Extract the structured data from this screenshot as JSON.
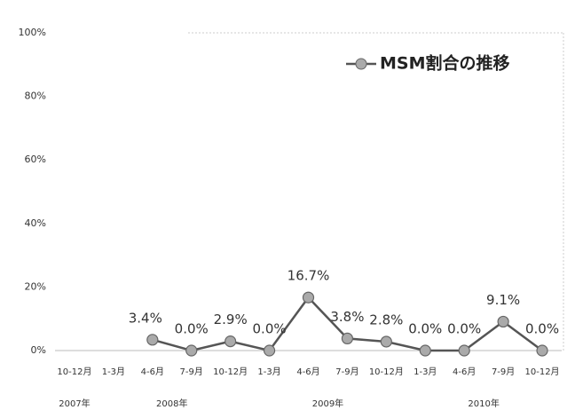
{
  "chart_data": {
    "type": "line",
    "categories": [
      "10-12月",
      "1-3月",
      "4-6月",
      "7-9月",
      "10-12月",
      "1-3月",
      "4-6月",
      "7-9月",
      "10-12月",
      "1-3月",
      "4-6月",
      "7-9月",
      "10-12月"
    ],
    "x_groups": [
      "2007年",
      "2008年",
      "2009年",
      "2010年"
    ],
    "series": [
      {
        "name": "MSM割合の推移",
        "color": "#555555",
        "values": [
          null,
          null,
          3.4,
          0.0,
          2.9,
          0.0,
          16.7,
          3.8,
          2.8,
          0.0,
          0.0,
          9.1,
          0.0
        ],
        "value_labels": [
          null,
          null,
          "3.4%",
          "0.0%",
          "2.9%",
          "0.0%",
          "16.7%",
          "3.8%",
          "2.8%",
          "0.0%",
          "0.0%",
          "9.1%",
          "0.0%"
        ]
      }
    ],
    "ylim": [
      0,
      100
    ],
    "yticks": [
      {
        "value": 0,
        "label": "0%"
      },
      {
        "value": 20,
        "label": "20%"
      },
      {
        "value": 40,
        "label": "40%"
      },
      {
        "value": 60,
        "label": "60%"
      },
      {
        "value": 80,
        "label": "80%"
      },
      {
        "value": 100,
        "label": "100%"
      }
    ],
    "legend": "top-right"
  }
}
